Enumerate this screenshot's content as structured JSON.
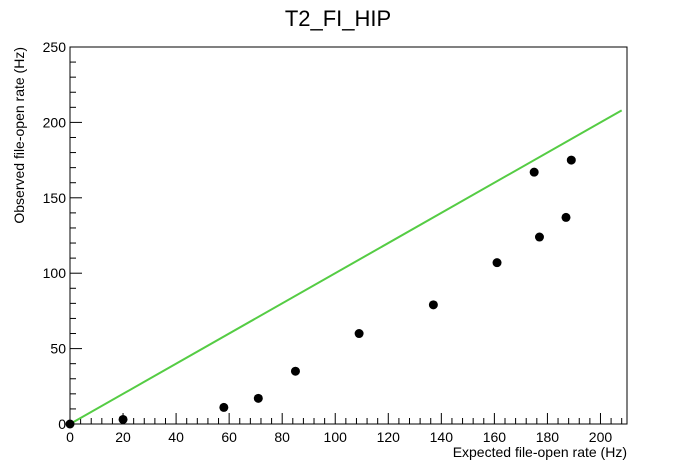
{
  "chart_data": {
    "type": "scatter",
    "title": "T2_FI_HIP",
    "xlabel": "Expected file-open rate (Hz)",
    "ylabel": "Observed file-open rate (Hz)",
    "xlim": [
      0,
      210
    ],
    "ylim": [
      0,
      250
    ],
    "x_ticks": [
      "0",
      "20",
      "40",
      "60",
      "80",
      "100",
      "120",
      "140",
      "160",
      "180",
      "200"
    ],
    "y_ticks": [
      "0",
      "50",
      "100",
      "150",
      "200",
      "250"
    ],
    "grid": false,
    "points": [
      {
        "x": 0,
        "y": 0
      },
      {
        "x": 20,
        "y": 3
      },
      {
        "x": 58,
        "y": 11
      },
      {
        "x": 71,
        "y": 17
      },
      {
        "x": 85,
        "y": 35
      },
      {
        "x": 109,
        "y": 60
      },
      {
        "x": 137,
        "y": 79
      },
      {
        "x": 161,
        "y": 107
      },
      {
        "x": 175,
        "y": 167
      },
      {
        "x": 177,
        "y": 124
      },
      {
        "x": 187,
        "y": 137
      },
      {
        "x": 189,
        "y": 175
      }
    ],
    "reference_line": {
      "x": [
        0,
        208
      ],
      "y": [
        0,
        208
      ],
      "color": "#55cc44"
    },
    "marker_color": "#000000"
  }
}
